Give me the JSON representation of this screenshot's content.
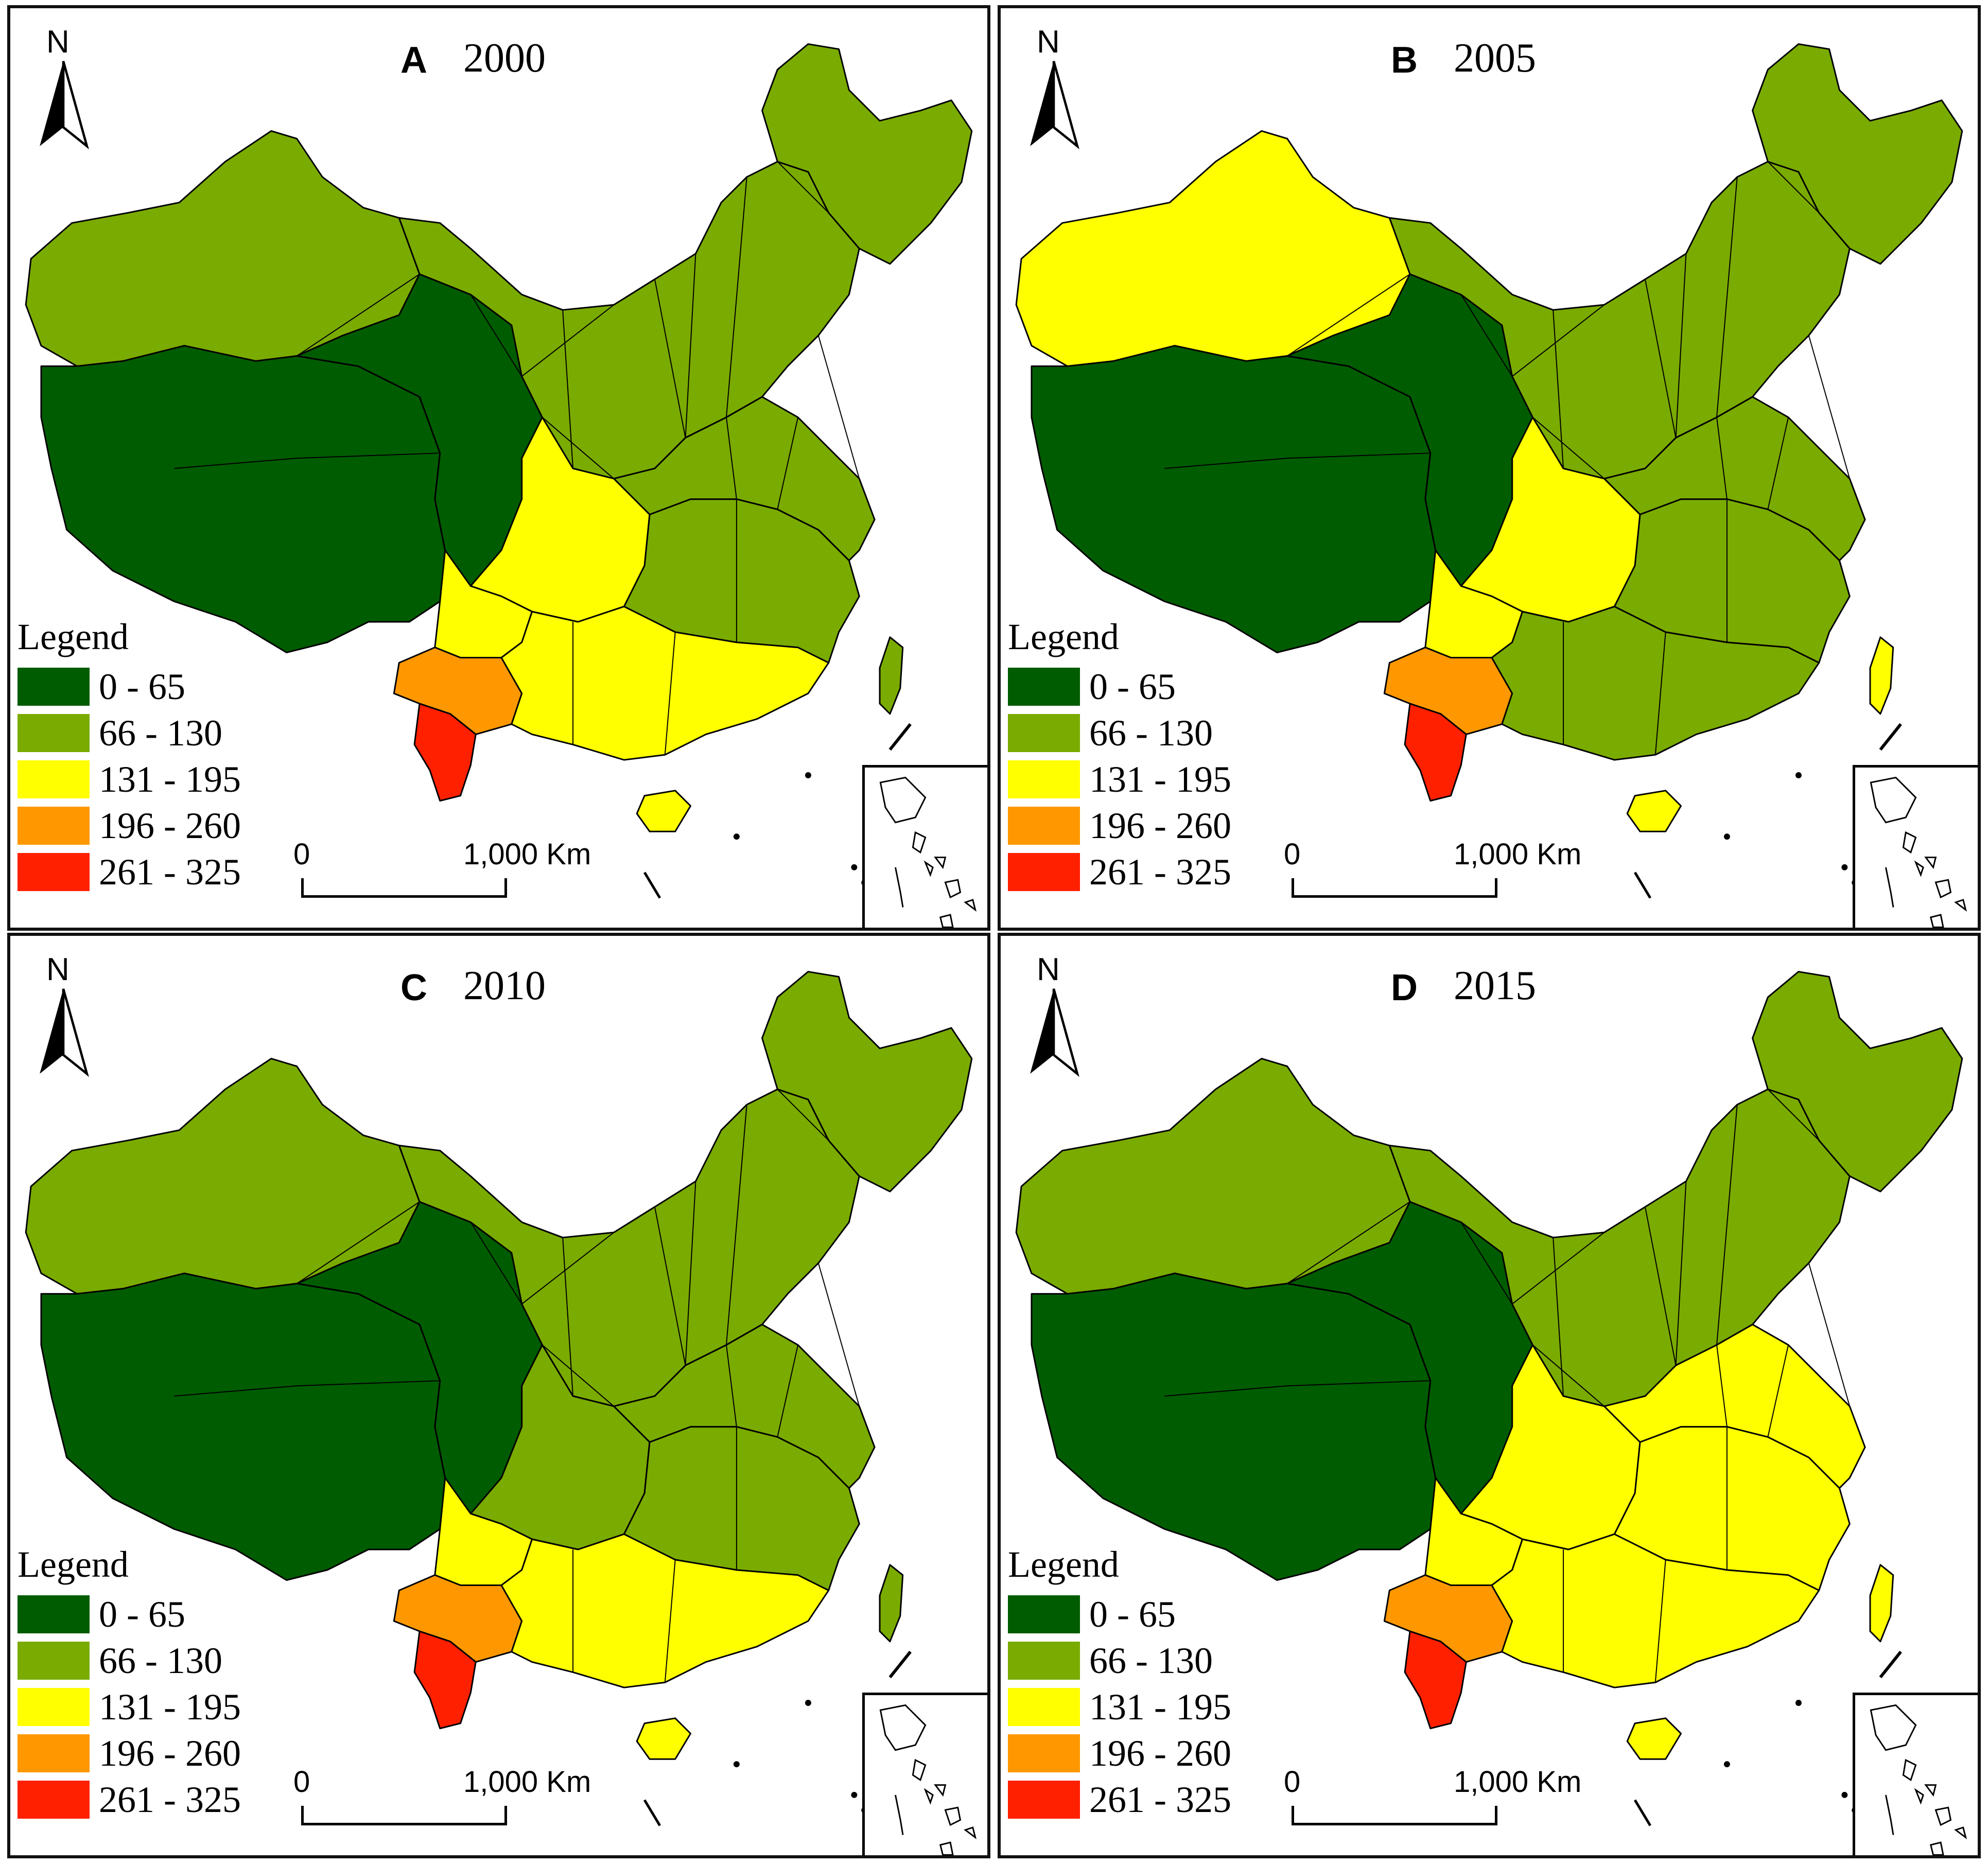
{
  "figure": {
    "panels": [
      {
        "letter": "A",
        "year": "2000",
        "regions": {
          "northwest": "66-130",
          "tibet": "0-65",
          "qinghai": "0-65",
          "north": "66-130",
          "northeast": "66-130",
          "sichuan_east": "131-195",
          "yunnan_north": "131-195",
          "yunnan_mid": "196-260",
          "yunnan_south": "261-325",
          "guangxi_guangdong": "131-195",
          "southeast": "66-130",
          "east": "66-130",
          "taiwan": "66-130",
          "hainan": "131-195"
        }
      },
      {
        "letter": "B",
        "year": "2005",
        "regions": {
          "northwest": "131-195",
          "tibet": "0-65",
          "qinghai": "0-65",
          "north": "66-130",
          "northeast": "66-130",
          "sichuan_east": "131-195",
          "yunnan_north": "131-195",
          "yunnan_mid": "196-260",
          "yunnan_south": "261-325",
          "guangxi_guangdong": "66-130",
          "southeast": "66-130",
          "east": "66-130",
          "taiwan": "131-195",
          "hainan": "131-195"
        }
      },
      {
        "letter": "C",
        "year": "2010",
        "regions": {
          "northwest": "66-130",
          "tibet": "0-65",
          "qinghai": "0-65",
          "north": "66-130",
          "northeast": "66-130",
          "sichuan_east": "66-130",
          "yunnan_north": "131-195",
          "yunnan_mid": "196-260",
          "yunnan_south": "261-325",
          "guangxi_guangdong": "131-195",
          "southeast": "66-130",
          "east": "66-130",
          "taiwan": "66-130",
          "hainan": "131-195"
        }
      },
      {
        "letter": "D",
        "year": "2015",
        "regions": {
          "northwest": "66-130",
          "tibet": "0-65",
          "qinghai": "0-65",
          "north": "66-130",
          "northeast": "66-130",
          "sichuan_east": "131-195",
          "yunnan_north": "131-195",
          "yunnan_mid": "196-260",
          "yunnan_south": "261-325",
          "guangxi_guangdong": "131-195",
          "southeast": "131-195",
          "east": "131-195",
          "taiwan": "131-195",
          "hainan": "131-195"
        }
      }
    ],
    "north_label": "N",
    "legend": {
      "title": "Legend",
      "classes": [
        {
          "range": "0-65",
          "label": "0 - 65",
          "color": "#005c00"
        },
        {
          "range": "66-130",
          "label": "66 - 130",
          "color": "#7aab00"
        },
        {
          "range": "131-195",
          "label": "131 - 195",
          "color": "#ffff00"
        },
        {
          "range": "196-260",
          "label": "196 - 260",
          "color": "#ff9800"
        },
        {
          "range": "261-325",
          "label": "261 - 325",
          "color": "#ff2000"
        }
      ]
    },
    "scale_bar": {
      "zero": "0",
      "distance": "1,000 Km"
    },
    "colors": {
      "border": "#111111",
      "background": "#ffffff",
      "boundary": "#000000"
    }
  }
}
